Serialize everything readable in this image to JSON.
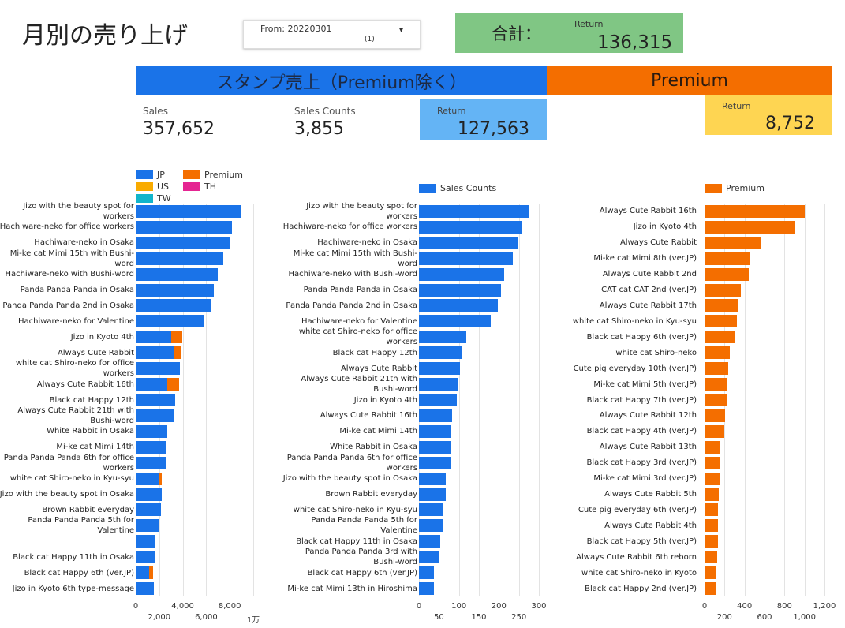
{
  "header": {
    "title": "月別の売り上げ",
    "filter": {
      "label": "From: 20220301",
      "count": "(1)"
    },
    "total": {
      "label": "合計：",
      "metric": "Return",
      "value": "136,315"
    }
  },
  "banners": [
    "スタンプ売上（Premium除く）",
    "Premium"
  ],
  "scorecards": [
    {
      "label": "Sales",
      "value": "357,652"
    },
    {
      "label": "Sales Counts",
      "value": "3,855"
    },
    {
      "label": "Return",
      "value": "127,563"
    },
    {
      "label": "Return",
      "value": "8,752"
    }
  ],
  "chart_data": [
    {
      "type": "bar",
      "orientation": "horizontal",
      "stacked": true,
      "categories": [
        "Jizo with the beauty spot for workers",
        "Hachiware-neko for office workers",
        "Hachiware-neko in Osaka",
        "Mi-ke cat Mimi 15th with Bushi-word",
        "Hachiware-neko with Bushi-word",
        "Panda Panda Panda in Osaka",
        "Panda Panda Panda 2nd in Osaka",
        "Hachiware-neko for Valentine",
        "Jizo in Kyoto 4th",
        "Always Cute Rabbit",
        "white cat Shiro-neko for office workers",
        "Always Cute Rabbit 16th",
        "Black cat Happy 12th",
        "Always Cute Rabbit 21th with Bushi-word",
        "White Rabbit in Osaka",
        "Mi-ke cat Mimi 14th",
        "Panda Panda Panda 6th for office workers",
        "white cat Shiro-neko in Kyu-syu",
        "Jizo with the beauty spot in Osaka",
        "Brown Rabbit everyday",
        "Panda Panda Panda 5th for Valentine",
        null,
        "Black cat Happy 11th in Osaka",
        "Black cat Happy 6th (ver.JP)",
        "Jizo in Kyoto 6th type-message"
      ],
      "series": [
        {
          "name": "JP",
          "color": "#1a73e8",
          "values": [
            8900,
            8200,
            8000,
            7450,
            7000,
            6650,
            6380,
            5770,
            3000,
            3300,
            3750,
            2700,
            3350,
            3200,
            2700,
            2600,
            2600,
            1950,
            2200,
            2150,
            1950,
            1700,
            1600,
            1150,
            1550
          ]
        },
        {
          "name": "US",
          "color": "#f9ab00",
          "values": [
            0,
            0,
            0,
            0,
            0,
            0,
            0,
            0,
            0,
            0,
            0,
            0,
            0,
            0,
            0,
            0,
            0,
            0,
            0,
            0,
            0,
            0,
            0,
            0,
            0
          ]
        },
        {
          "name": "TW",
          "color": "#12b5cb",
          "values": [
            0,
            0,
            0,
            0,
            0,
            0,
            0,
            0,
            0,
            0,
            0,
            0,
            0,
            0,
            0,
            0,
            0,
            0,
            0,
            0,
            0,
            0,
            0,
            0,
            0
          ]
        },
        {
          "name": "Premium",
          "color": "#f46e00",
          "values": [
            0,
            0,
            0,
            0,
            0,
            0,
            0,
            0,
            950,
            600,
            0,
            1000,
            0,
            0,
            0,
            0,
            0,
            270,
            0,
            0,
            0,
            0,
            0,
            330,
            0
          ]
        },
        {
          "name": "TH",
          "color": "#e52592",
          "values": [
            0,
            0,
            0,
            0,
            0,
            0,
            0,
            0,
            0,
            0,
            0,
            0,
            0,
            0,
            0,
            0,
            0,
            0,
            0,
            0,
            0,
            0,
            0,
            0,
            0
          ]
        }
      ],
      "xlim": [
        0,
        10000
      ],
      "xticks": [
        0,
        {
          "value": 2000,
          "label": "2,000"
        },
        {
          "value": 4000,
          "label": "4,000"
        },
        {
          "value": 6000,
          "label": "6,000"
        },
        {
          "value": 8000,
          "label": "8,000"
        },
        {
          "value": 10000,
          "label": "1万"
        }
      ],
      "grid": true,
      "legend": "top-left"
    },
    {
      "type": "bar",
      "orientation": "horizontal",
      "stacked": false,
      "categories": [
        "Jizo with the beauty spot for workers",
        "Hachiware-neko for office workers",
        "Hachiware-neko in Osaka",
        "Mi-ke cat Mimi 15th with Bushi-word",
        "Hachiware-neko with Bushi-word",
        "Panda Panda Panda in Osaka",
        "Panda Panda Panda 2nd in Osaka",
        "Hachiware-neko for Valentine",
        "white cat Shiro-neko for office workers",
        "Black cat Happy 12th",
        "Always Cute Rabbit",
        "Always Cute Rabbit 21th with Bushi-word",
        "Jizo in Kyoto 4th",
        "Always Cute Rabbit 16th",
        "Mi-ke cat Mimi 14th",
        "White Rabbit in Osaka",
        "Panda Panda Panda 6th for office workers",
        "Jizo with the beauty spot in Osaka",
        "Brown Rabbit everyday",
        "white cat Shiro-neko in Kyu-syu",
        "Panda Panda Panda 5th for Valentine",
        "Black cat Happy 11th in Osaka",
        "Panda Panda Panda 3rd with Bushi-word",
        "Black cat Happy 6th (ver.JP)",
        "Mi-ke cat Mimi 13th in Hiroshima"
      ],
      "series": [
        {
          "name": "Sales Counts",
          "color": "#1a73e8",
          "values": [
            276,
            256,
            249,
            235,
            213,
            205,
            197,
            179,
            118,
            106,
            102,
            99,
            95,
            83,
            81,
            81,
            81,
            67,
            67,
            59,
            59,
            53,
            51,
            37,
            37
          ]
        }
      ],
      "xlim": [
        0,
        300
      ],
      "xticks": [
        0,
        50,
        100,
        150,
        200,
        250,
        300
      ],
      "grid": true,
      "legend": "top"
    },
    {
      "type": "bar",
      "orientation": "horizontal",
      "stacked": false,
      "categories": [
        "Always Cute Rabbit 16th",
        "Jizo in Kyoto 4th",
        "Always Cute Rabbit",
        "Mi-ke cat Mimi 8th (ver.JP)",
        "Always Cute Rabbit 2nd",
        "CAT cat CAT 2nd (ver.JP)",
        "Always Cute Rabbit 17th",
        "white cat Shiro-neko in Kyu-syu",
        "Black cat Happy 6th (ver.JP)",
        "white cat Shiro-neko",
        "Cute pig everyday 10th (ver.JP)",
        "Mi-ke cat Mimi 5th (ver.JP)",
        "Black cat Happy 7th (ver.JP)",
        "Always Cute Rabbit 12th",
        "Black cat Happy 4th (ver.JP)",
        "Always Cute Rabbit 13th",
        "Black cat Happy 3rd (ver.JP)",
        "Mi-ke cat Mimi 3rd (ver.JP)",
        "Always Cute Rabbit 5th",
        "Cute pig everyday 6th (ver.JP)",
        "Always Cute Rabbit 4th",
        "Black cat Happy 5th (ver.JP)",
        "Always Cute Rabbit 6th reborn",
        "white cat Shiro-neko in Kyoto",
        "Black cat Happy 2nd (ver.JP)"
      ],
      "series": [
        {
          "name": "Premium",
          "color": "#f46e00",
          "values": [
            1004,
            909,
            569,
            458,
            443,
            364,
            332,
            324,
            308,
            253,
            237,
            229,
            221,
            206,
            198,
            158,
            158,
            158,
            142,
            134,
            134,
            134,
            126,
            119,
            111
          ]
        }
      ],
      "xlim": [
        0,
        1200
      ],
      "xticks": [
        0,
        200,
        400,
        600,
        800,
        {
          "value": 1000,
          "label": "1,000"
        },
        {
          "value": 1200,
          "label": "1,200"
        }
      ],
      "grid": true,
      "legend": "top"
    }
  ]
}
